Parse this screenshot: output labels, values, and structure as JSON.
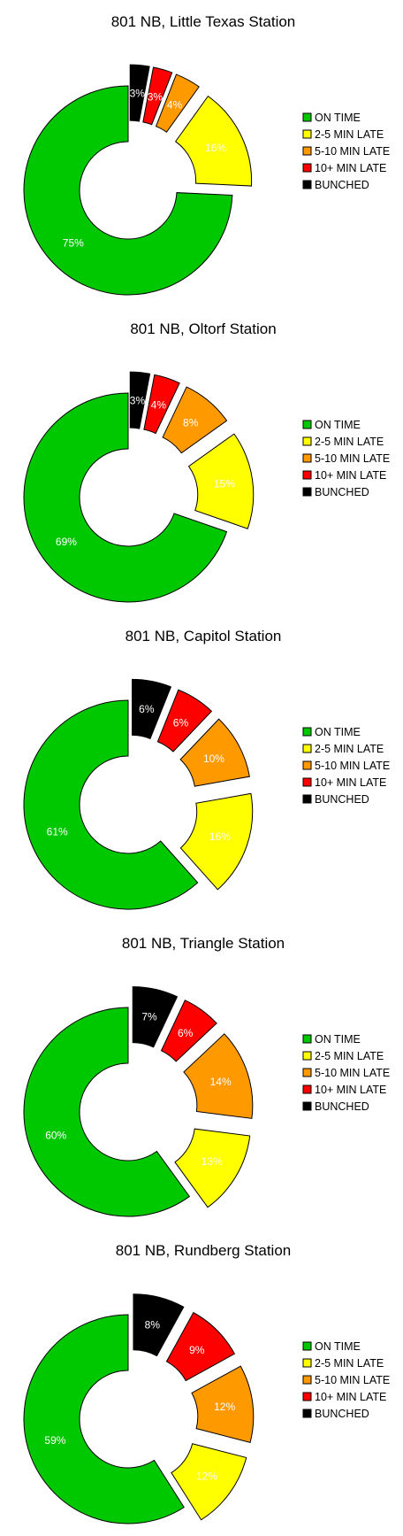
{
  "legend_colors": [
    "#00c800",
    "#ffff00",
    "#ff9900",
    "#ff0000",
    "#000000"
  ],
  "chart_data": [
    {
      "type": "pie",
      "title": "801 NB, Little Texas Station",
      "categories": [
        "ON TIME",
        "2-5 MIN LATE",
        "5-10 MIN LATE",
        "10+ MIN LATE",
        "BUNCHED"
      ],
      "values": [
        75,
        16,
        4,
        3,
        3
      ],
      "labels": [
        "75%",
        "16%",
        "4%",
        "3%",
        "3%"
      ],
      "donut": true,
      "exploded": true,
      "legend_position": "right"
    },
    {
      "type": "pie",
      "title": "801 NB, Oltorf Station",
      "categories": [
        "ON TIME",
        "2-5 MIN LATE",
        "5-10 MIN LATE",
        "10+ MIN LATE",
        "BUNCHED"
      ],
      "values": [
        69,
        15,
        8,
        4,
        3
      ],
      "labels": [
        "69%",
        "15%",
        "8%",
        "4%",
        "3%"
      ],
      "donut": true,
      "exploded": true,
      "legend_position": "right"
    },
    {
      "type": "pie",
      "title": "801 NB, Capitol Station",
      "categories": [
        "ON TIME",
        "2-5 MIN LATE",
        "5-10 MIN LATE",
        "10+ MIN LATE",
        "BUNCHED"
      ],
      "values": [
        61,
        16,
        10,
        6,
        6
      ],
      "labels": [
        "61%",
        "16%",
        "10%",
        "6%",
        "6%"
      ],
      "donut": true,
      "exploded": true,
      "legend_position": "right"
    },
    {
      "type": "pie",
      "title": "801 NB, Triangle Station",
      "categories": [
        "ON TIME",
        "2-5 MIN LATE",
        "5-10 MIN LATE",
        "10+ MIN LATE",
        "BUNCHED"
      ],
      "values": [
        60,
        13,
        14,
        6,
        7
      ],
      "labels": [
        "60%",
        "13%",
        "14%",
        "6%",
        "7%"
      ],
      "donut": true,
      "exploded": true,
      "legend_position": "right"
    },
    {
      "type": "pie",
      "title": "801 NB, Rundberg Station",
      "categories": [
        "ON TIME",
        "2-5 MIN LATE",
        "5-10 MIN LATE",
        "10+ MIN LATE",
        "BUNCHED"
      ],
      "values": [
        59,
        12,
        12,
        9,
        8
      ],
      "labels": [
        "59%",
        "12%",
        "12%",
        "9%",
        "8%"
      ],
      "donut": true,
      "exploded": true,
      "legend_position": "right"
    }
  ]
}
